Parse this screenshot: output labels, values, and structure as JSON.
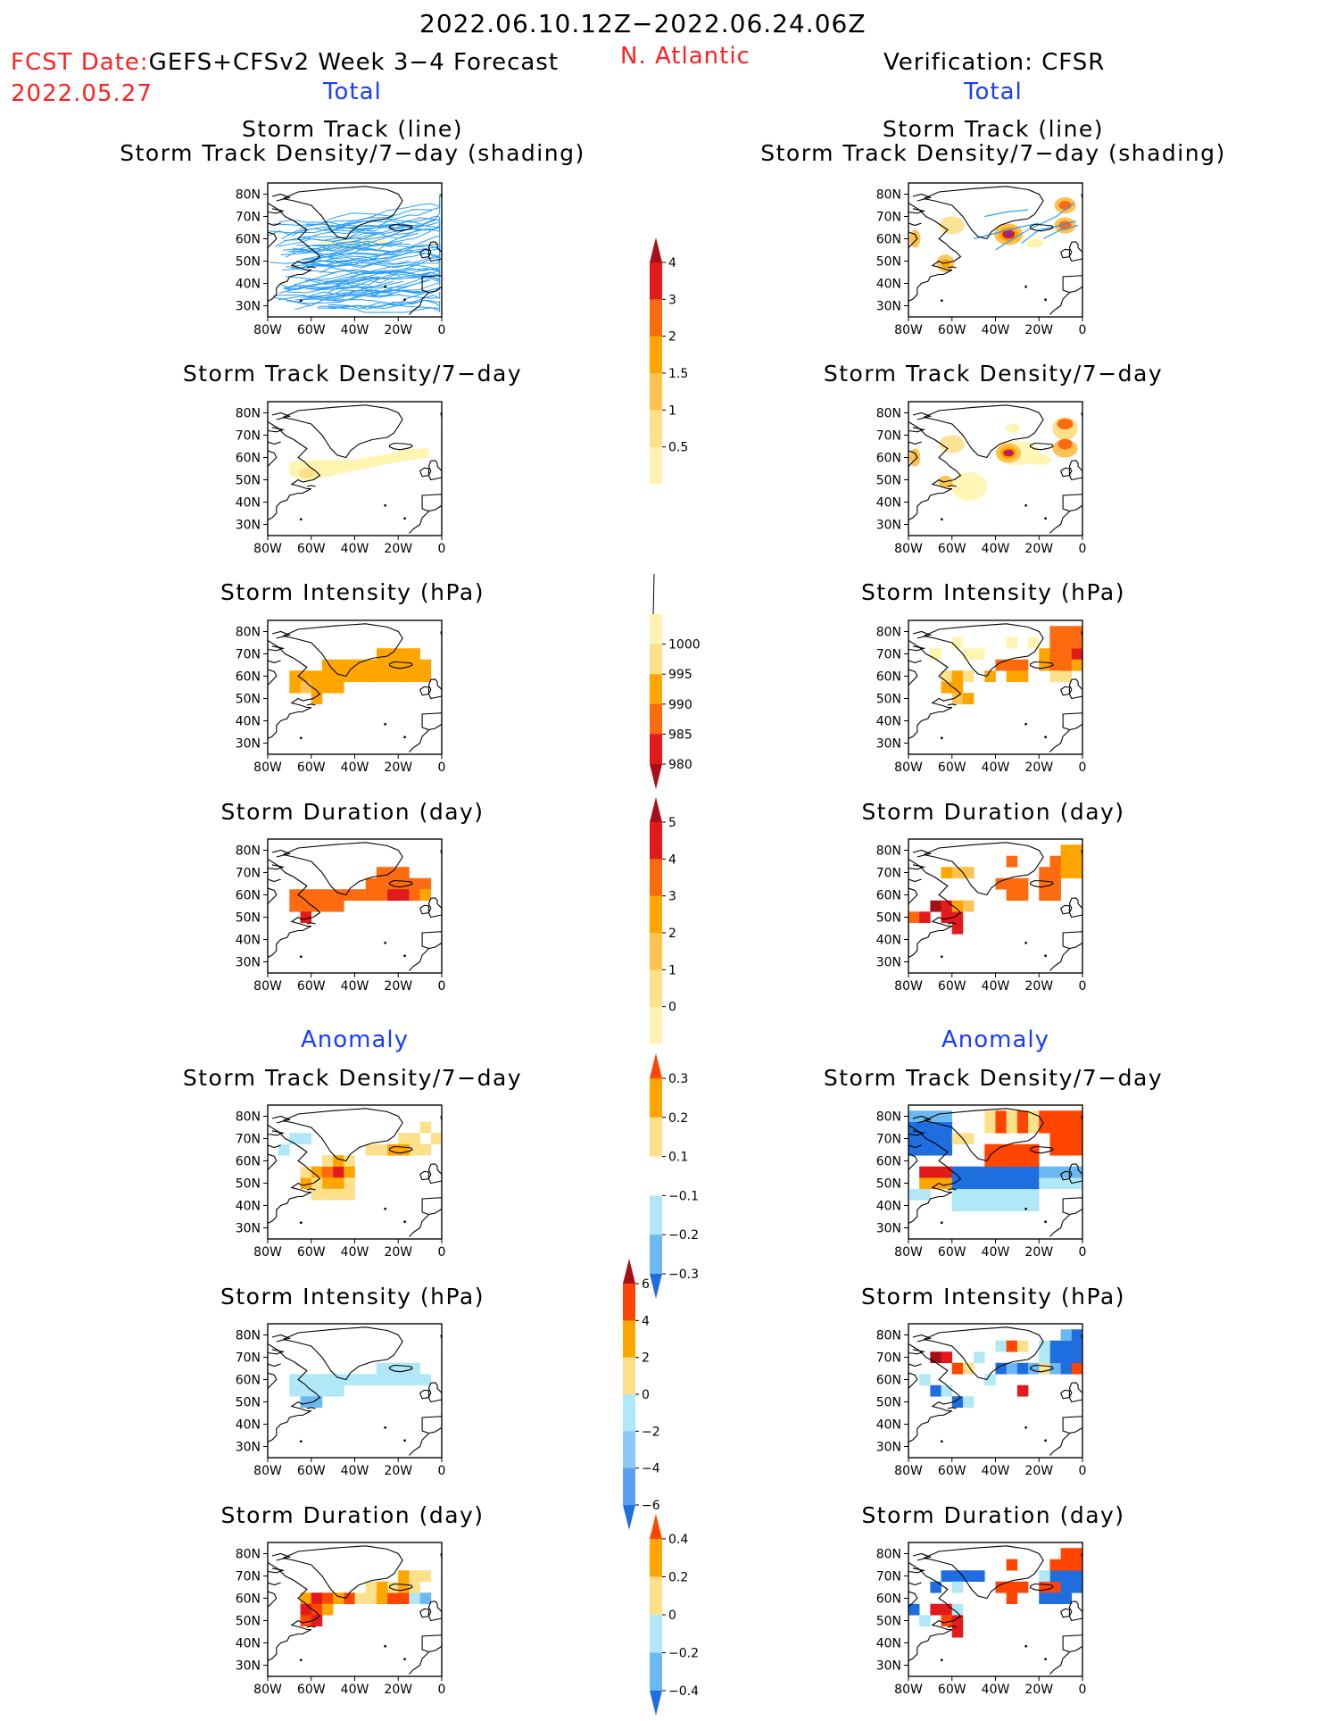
{
  "header": {
    "period": "2022.06.10.12Z−2022.06.24.06Z",
    "fcst_label": "FCST Date:",
    "fcst_model": "GEFS+CFSv2 Week 3−4 Forecast",
    "fcst_date": "2022.05.27",
    "region": "N. Atlantic",
    "verification": "Verification: CFSR",
    "total_left": "Total",
    "total_right": "Total",
    "anomaly_left": "Anomaly",
    "anomaly_right": "Anomaly"
  },
  "panel_titles": {
    "track_line": "Storm Track (line)",
    "track_shading": "Storm Track Density/7−day (shading)",
    "density": "Storm Track Density/7−day",
    "intensity": "Storm Intensity (hPa)",
    "duration": "Storm Duration (day)"
  },
  "axes": {
    "lat_labels": [
      "80N",
      "70N",
      "60N",
      "50N",
      "40N",
      "30N"
    ],
    "lon_labels": [
      "80W",
      "60W",
      "40W",
      "20W",
      "0"
    ]
  },
  "colorbars": {
    "density_total": {
      "labels": [
        "4",
        "3",
        "2",
        "1.5",
        "1",
        "0.5"
      ],
      "colors": [
        "#a50f15",
        "#e31a1c",
        "#fd6a10",
        "#ffa500",
        "#fdc24f",
        "#fee08b",
        "#fff5b0"
      ]
    },
    "intensity_total": {
      "labels": [
        "1000",
        "995",
        "990",
        "985",
        "980"
      ],
      "colors": [
        "#fff5b0",
        "#fee08b",
        "#ffa500",
        "#fd6a10",
        "#e31a1c",
        "#a50f15"
      ]
    },
    "duration_total": {
      "labels": [
        "5",
        "4",
        "3",
        "2",
        "1",
        "0"
      ],
      "colors": [
        "#a50f15",
        "#e31a1c",
        "#fd6a10",
        "#ffa500",
        "#fdc24f",
        "#fee08b",
        "#fff5b0"
      ]
    },
    "density_anom": {
      "labels": [
        "0.3",
        "0.2",
        "0.1",
        "−0.1",
        "−0.2",
        "−0.3"
      ],
      "colors": [
        "#ff4500",
        "#ffa500",
        "#fee08b",
        "#ffffff",
        "#b0e8f8",
        "#6cb8f0",
        "#1e6ee0"
      ]
    },
    "intensity_anom": {
      "labels": [
        "6",
        "4",
        "2",
        "0",
        "−2",
        "−4",
        "−6"
      ],
      "colors": [
        "#a50f15",
        "#ff4500",
        "#ffa500",
        "#fee08b",
        "#b0e8f8",
        "#8cc8f8",
        "#5aa0f0",
        "#1e6ee0"
      ]
    },
    "duration_anom": {
      "labels": [
        "0.4",
        "0.2",
        "0",
        "−0.2",
        "−0.4"
      ],
      "colors": [
        "#ff4500",
        "#ffa500",
        "#fee08b",
        "#b0e8f8",
        "#6cb8f0",
        "#1e6ee0"
      ]
    }
  }
}
